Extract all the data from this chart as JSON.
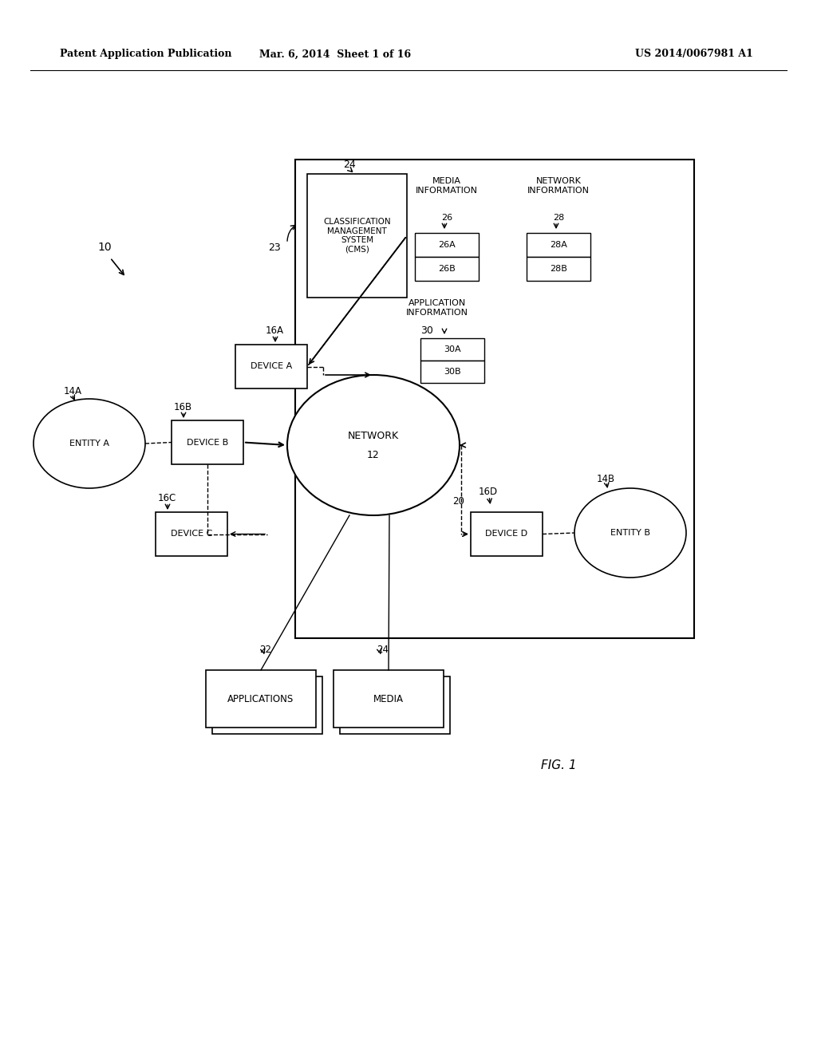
{
  "background_color": "#ffffff",
  "header_text1": "Patent Application Publication",
  "header_text2": "Mar. 6, 2014  Sheet 1 of 16",
  "header_text3": "US 2014/0067981 A1",
  "fig_label": "FIG. 1"
}
